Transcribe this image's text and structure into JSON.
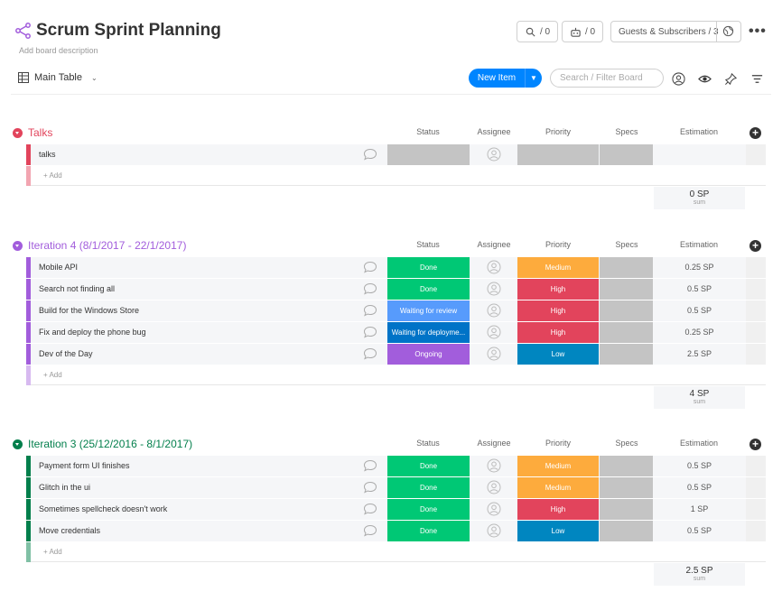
{
  "board": {
    "title": "Scrum Sprint Planning",
    "description": "Add board description",
    "activity_count": "/ 0",
    "integrations_count": "/ 0",
    "guests_label": "Guests & Subscribers / 3"
  },
  "toolbar": {
    "view_label": "Main Table",
    "new_item_label": "New Item",
    "search_placeholder": "Search / Filter Board"
  },
  "columns": [
    "Status",
    "Assignee",
    "Priority",
    "Specs",
    "Estimation"
  ],
  "add_row_label": "+ Add",
  "sum_label": "sum",
  "colors": {
    "done": "#00c875",
    "waiting_review": "#579bfc",
    "waiting_deploy": "#0073c7",
    "ongoing": "#a25ddc",
    "empty": "#c4c4c4",
    "medium": "#fdab3d",
    "high": "#e2445c",
    "low": "#0086c0",
    "talks": "#e2445c",
    "iteration4": "#a25ddc",
    "iteration3": "#037f4c"
  },
  "groups": [
    {
      "title": "Talks",
      "color": "#e2445c",
      "add_color": "#f2a5b1",
      "sum": "0 SP",
      "rows": [
        {
          "name": "talks",
          "status": "",
          "status_color": "#c4c4c4",
          "priority": "",
          "priority_color": "#c4c4c4",
          "estimation": ""
        }
      ]
    },
    {
      "title": "Iteration 4 (8/1/2017 - 22/1/2017)",
      "color": "#a25ddc",
      "add_color": "#d7b9f0",
      "sum": "4 SP",
      "rows": [
        {
          "name": "Mobile API",
          "status": "Done",
          "status_color": "#00c875",
          "priority": "Medium",
          "priority_color": "#fdab3d",
          "estimation": "0.25 SP"
        },
        {
          "name": "Search not finding all",
          "status": "Done",
          "status_color": "#00c875",
          "priority": "High",
          "priority_color": "#e2445c",
          "estimation": "0.5 SP"
        },
        {
          "name": "Build for the Windows Store",
          "status": "Waiting for review",
          "status_color": "#579bfc",
          "priority": "High",
          "priority_color": "#e2445c",
          "estimation": "0.5 SP"
        },
        {
          "name": "Fix and deploy the phone bug",
          "status": "Waiting for deployme...",
          "status_color": "#0073c7",
          "priority": "High",
          "priority_color": "#e2445c",
          "estimation": "0.25 SP"
        },
        {
          "name": "Dev of the Day",
          "status": "Ongoing",
          "status_color": "#a25ddc",
          "priority": "Low",
          "priority_color": "#0086c0",
          "estimation": "2.5 SP"
        }
      ]
    },
    {
      "title": "Iteration 3 (25/12/2016 - 8/1/2017)",
      "color": "#037f4c",
      "add_color": "#80c0a5",
      "sum": "2.5 SP",
      "rows": [
        {
          "name": "Payment form UI finishes",
          "status": "Done",
          "status_color": "#00c875",
          "priority": "Medium",
          "priority_color": "#fdab3d",
          "estimation": "0.5 SP"
        },
        {
          "name": "Glitch in the ui",
          "status": "Done",
          "status_color": "#00c875",
          "priority": "Medium",
          "priority_color": "#fdab3d",
          "estimation": "0.5 SP"
        },
        {
          "name": "Sometimes spellcheck doesn't work",
          "status": "Done",
          "status_color": "#00c875",
          "priority": "High",
          "priority_color": "#e2445c",
          "estimation": "1 SP"
        },
        {
          "name": "Move credentials",
          "status": "Done",
          "status_color": "#00c875",
          "priority": "Low",
          "priority_color": "#0086c0",
          "estimation": "0.5 SP"
        }
      ]
    }
  ]
}
